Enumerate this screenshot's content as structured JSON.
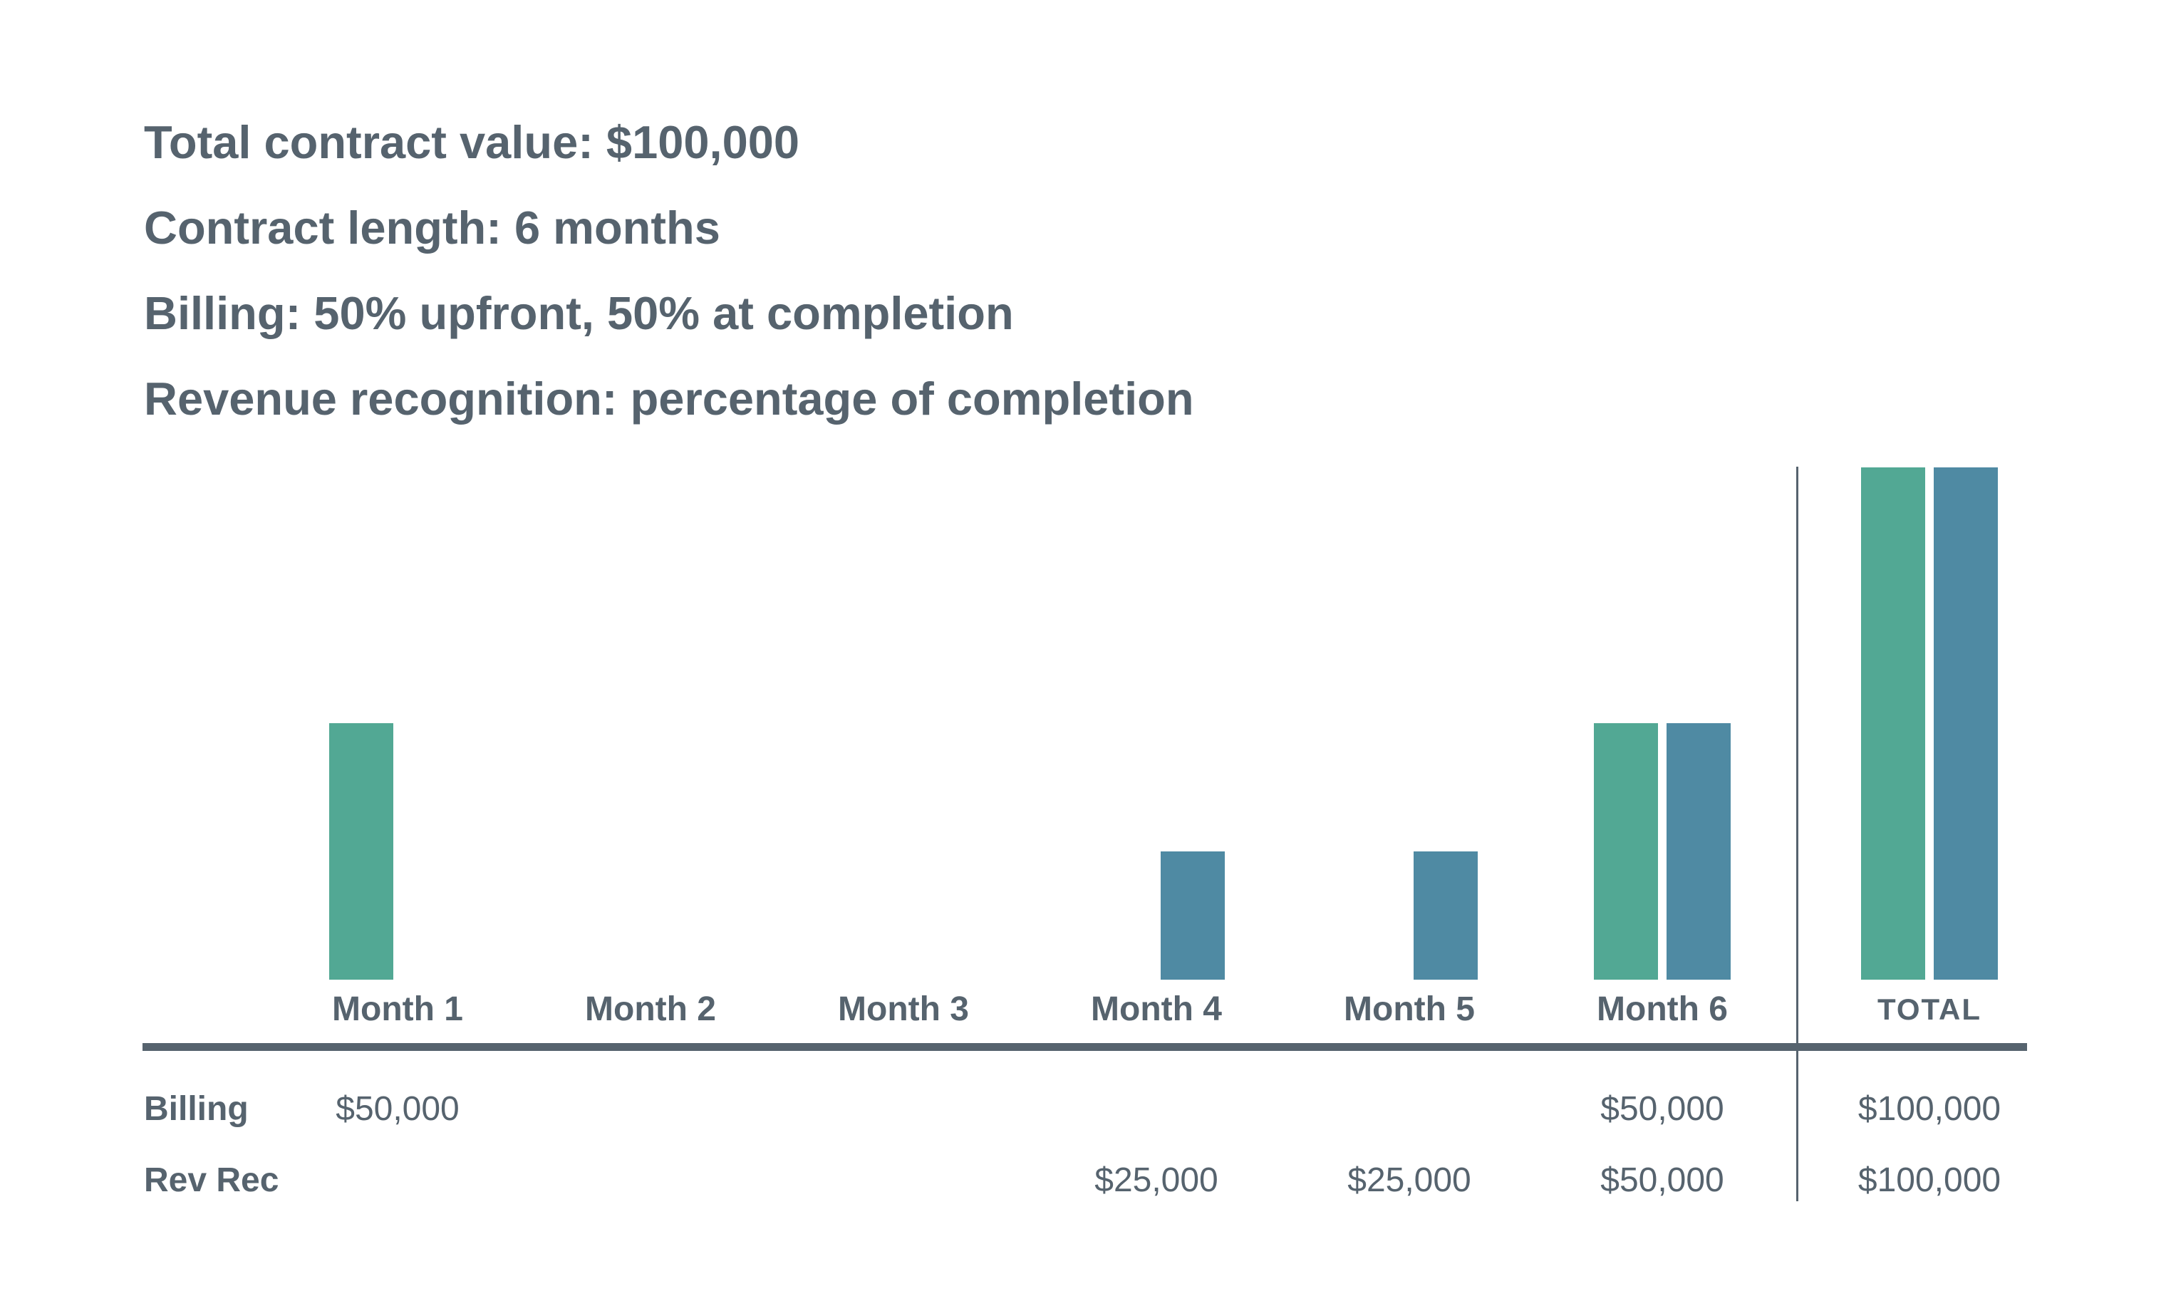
{
  "header": {
    "lines": [
      "Total contract value: $100,000",
      "Contract length: 6 months",
      "Billing: 50% upfront, 50% at completion",
      "Revenue recognition: percentage of completion"
    ]
  },
  "chart_data": {
    "type": "bar",
    "title": "",
    "categories": [
      "Month 1",
      "Month 2",
      "Month 3",
      "Month 4",
      "Month 5",
      "Month 6",
      "TOTAL"
    ],
    "series": [
      {
        "name": "Billing",
        "color": "#52A894",
        "values": [
          50000,
          0,
          0,
          0,
          0,
          50000,
          100000
        ]
      },
      {
        "name": "Rev Rec",
        "color": "#4F8AA3",
        "values": [
          0,
          0,
          0,
          25000,
          25000,
          50000,
          100000
        ]
      }
    ],
    "ylim": [
      0,
      100000
    ],
    "grid": false,
    "legend": "none",
    "axis_labels_shown": false,
    "divider_before_category": "TOTAL"
  },
  "table": {
    "rows": [
      {
        "label": "Billing",
        "values": [
          "$50,000",
          "",
          "",
          "",
          "",
          "$50,000",
          "$100,000"
        ]
      },
      {
        "label": "Rev Rec",
        "values": [
          "",
          "",
          "",
          "$25,000",
          "$25,000",
          "$50,000",
          "$100,000"
        ]
      }
    ]
  },
  "colors": {
    "text": "#56636E",
    "billing_bar": "#52A894",
    "rev_rec_bar": "#4F8AA3",
    "rule": "#56636E",
    "background": "#FFFFFF"
  }
}
